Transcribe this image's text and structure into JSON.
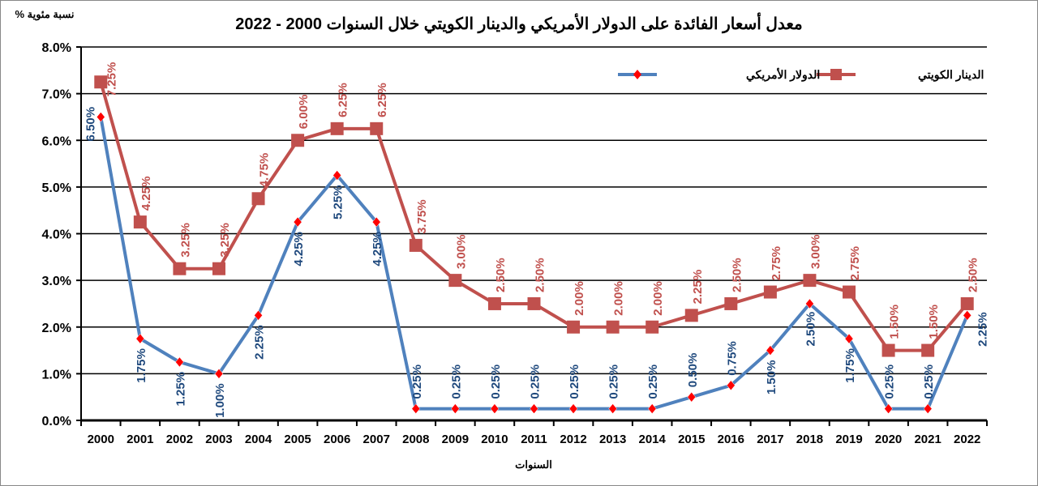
{
  "chart_data": {
    "type": "line",
    "title": "معدل أسعار الفائدة على الدولار الأمريكي والدينار الكويتي خلال السنوات 2000 - 2022",
    "xlabel": "السنوات",
    "ylabel": "نسبة مئوية %",
    "ylim": [
      0,
      8
    ],
    "yticks": [
      "0.0%",
      "1.0%",
      "2.0%",
      "3.0%",
      "4.0%",
      "5.0%",
      "6.0%",
      "7.0%",
      "8.0%"
    ],
    "grid": true,
    "legend_position": "top-right",
    "categories": [
      "2000",
      "2001",
      "2002",
      "2003",
      "2004",
      "2005",
      "2006",
      "2007",
      "2008",
      "2009",
      "2010",
      "2011",
      "2012",
      "2013",
      "2014",
      "2015",
      "2016",
      "2017",
      "2018",
      "2019",
      "2020",
      "2021",
      "2022"
    ],
    "series": [
      {
        "name": "الدولار الأمريكي",
        "color": "#4F81BD",
        "marker_color": "#FF0000",
        "label_color": "#1F497D",
        "values": [
          6.5,
          1.75,
          1.25,
          1.0,
          2.25,
          4.25,
          5.25,
          4.25,
          0.25,
          0.25,
          0.25,
          0.25,
          0.25,
          0.25,
          0.25,
          0.5,
          0.75,
          1.5,
          2.5,
          1.75,
          0.25,
          0.25,
          2.25
        ]
      },
      {
        "name": "الدينار الكويتي",
        "color": "#C0504D",
        "marker_color": "#C0504D",
        "label_color": "#C0504D",
        "values": [
          7.25,
          4.25,
          3.25,
          3.25,
          4.75,
          6.0,
          6.25,
          6.25,
          3.75,
          3.0,
          2.5,
          2.5,
          2.0,
          2.0,
          2.0,
          2.25,
          2.5,
          2.75,
          3.0,
          2.75,
          1.5,
          1.5,
          2.5
        ]
      }
    ]
  }
}
